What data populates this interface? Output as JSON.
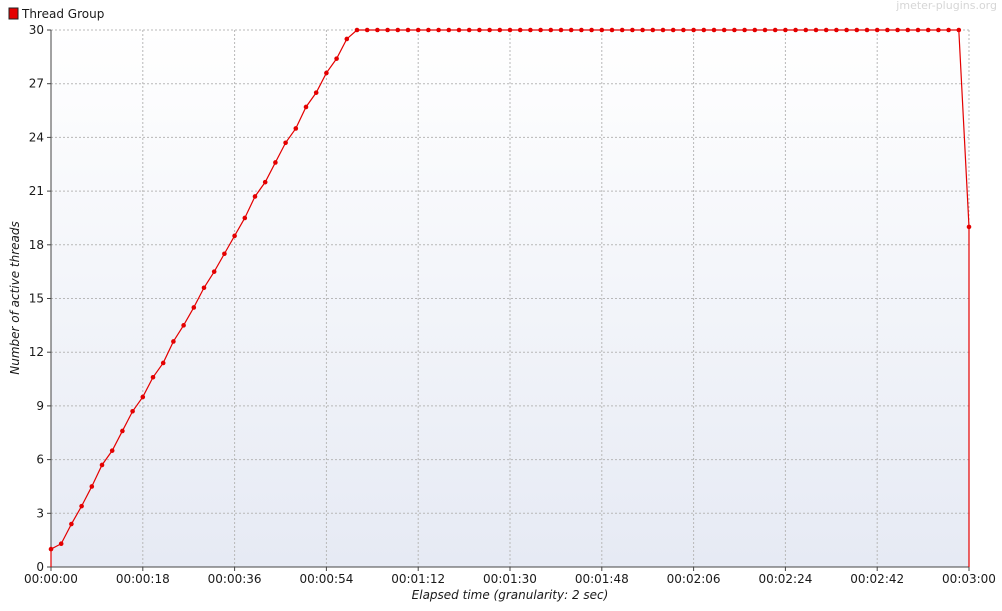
{
  "chart_data": {
    "type": "line",
    "title": "",
    "xlabel": "Elapsed time (granularity: 2 sec)",
    "ylabel": "Number of active threads",
    "watermark": "jmeter-plugins.org",
    "xlim": [
      0,
      180
    ],
    "ylim": [
      0,
      30
    ],
    "x_tick_values": [
      0,
      18,
      36,
      54,
      72,
      90,
      108,
      126,
      144,
      162,
      180
    ],
    "x_tick_labels": [
      "00:00:00",
      "00:00:18",
      "00:00:36",
      "00:00:54",
      "00:01:12",
      "00:01:30",
      "00:01:48",
      "00:02:06",
      "00:02:24",
      "00:02:42",
      "00:03:00"
    ],
    "y_ticks": [
      0,
      3,
      6,
      9,
      12,
      15,
      18,
      21,
      24,
      27,
      30
    ],
    "grid": true,
    "legend_position": "top-left",
    "background_gradient": [
      "#ffffff",
      "#e6eaf4"
    ],
    "series": [
      {
        "name": "Thread Group",
        "color": "#e40000",
        "points": [
          [
            0,
            0
          ],
          [
            0,
            1
          ],
          [
            2,
            1.3
          ],
          [
            4,
            2.4
          ],
          [
            6,
            3.4
          ],
          [
            8,
            4.5
          ],
          [
            10,
            5.7
          ],
          [
            12,
            6.5
          ],
          [
            14,
            7.6
          ],
          [
            16,
            8.7
          ],
          [
            18,
            9.5
          ],
          [
            20,
            10.6
          ],
          [
            22,
            11.4
          ],
          [
            24,
            12.6
          ],
          [
            26,
            13.5
          ],
          [
            28,
            14.5
          ],
          [
            30,
            15.6
          ],
          [
            32,
            16.5
          ],
          [
            34,
            17.5
          ],
          [
            36,
            18.5
          ],
          [
            38,
            19.5
          ],
          [
            40,
            20.7
          ],
          [
            42,
            21.5
          ],
          [
            44,
            22.6
          ],
          [
            46,
            23.7
          ],
          [
            48,
            24.5
          ],
          [
            50,
            25.7
          ],
          [
            52,
            26.5
          ],
          [
            54,
            27.6
          ],
          [
            56,
            28.4
          ],
          [
            58,
            29.5
          ],
          [
            60,
            30
          ],
          [
            62,
            30
          ],
          [
            64,
            30
          ],
          [
            66,
            30
          ],
          [
            68,
            30
          ],
          [
            70,
            30
          ],
          [
            72,
            30
          ],
          [
            74,
            30
          ],
          [
            76,
            30
          ],
          [
            78,
            30
          ],
          [
            80,
            30
          ],
          [
            82,
            30
          ],
          [
            84,
            30
          ],
          [
            86,
            30
          ],
          [
            88,
            30
          ],
          [
            90,
            30
          ],
          [
            92,
            30
          ],
          [
            94,
            30
          ],
          [
            96,
            30
          ],
          [
            98,
            30
          ],
          [
            100,
            30
          ],
          [
            102,
            30
          ],
          [
            104,
            30
          ],
          [
            106,
            30
          ],
          [
            108,
            30
          ],
          [
            110,
            30
          ],
          [
            112,
            30
          ],
          [
            114,
            30
          ],
          [
            116,
            30
          ],
          [
            118,
            30
          ],
          [
            120,
            30
          ],
          [
            122,
            30
          ],
          [
            124,
            30
          ],
          [
            126,
            30
          ],
          [
            128,
            30
          ],
          [
            130,
            30
          ],
          [
            132,
            30
          ],
          [
            134,
            30
          ],
          [
            136,
            30
          ],
          [
            138,
            30
          ],
          [
            140,
            30
          ],
          [
            142,
            30
          ],
          [
            144,
            30
          ],
          [
            146,
            30
          ],
          [
            148,
            30
          ],
          [
            150,
            30
          ],
          [
            152,
            30
          ],
          [
            154,
            30
          ],
          [
            156,
            30
          ],
          [
            158,
            30
          ],
          [
            160,
            30
          ],
          [
            162,
            30
          ],
          [
            164,
            30
          ],
          [
            166,
            30
          ],
          [
            168,
            30
          ],
          [
            170,
            30
          ],
          [
            172,
            30
          ],
          [
            174,
            30
          ],
          [
            176,
            30
          ],
          [
            178,
            30
          ],
          [
            180,
            19
          ],
          [
            180,
            0
          ]
        ],
        "marker_indices_skip": [
          0,
          92
        ]
      }
    ]
  }
}
